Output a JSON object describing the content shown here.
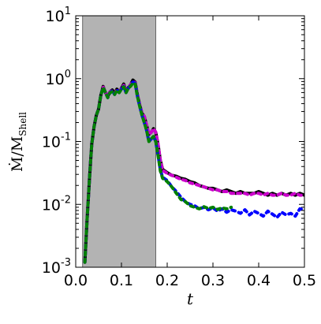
{
  "chart_data": {
    "type": "line",
    "title": "",
    "xlabel": "t",
    "ylabel": {
      "main": "Ṁ/M",
      "subscript": "Shell"
    },
    "xlim": [
      0.0,
      0.5
    ],
    "ylim": [
      0.001,
      10
    ],
    "yscale": "log",
    "grid": false,
    "legend": "none",
    "x_ticks": [
      "0.0",
      "0.1",
      "0.2",
      "0.3",
      "0.4",
      "0.5"
    ],
    "y_ticks": [
      {
        "base": "10",
        "exp": "-3"
      },
      {
        "base": "10",
        "exp": "-2"
      },
      {
        "base": "10",
        "exp": "-1"
      },
      {
        "base": "10",
        "exp": "0"
      },
      {
        "base": "10",
        "exp": "1"
      }
    ],
    "shaded_region": {
      "x": [
        0.015,
        0.175
      ],
      "color": "#b3b3b3"
    },
    "series": [
      {
        "color": "#000000",
        "style": "solid",
        "points": [
          [
            0.02,
            0.0012
          ],
          [
            0.025,
            0.006
          ],
          [
            0.03,
            0.025
          ],
          [
            0.035,
            0.09
          ],
          [
            0.04,
            0.17
          ],
          [
            0.045,
            0.26
          ],
          [
            0.05,
            0.33
          ],
          [
            0.055,
            0.55
          ],
          [
            0.06,
            0.75
          ],
          [
            0.065,
            0.6
          ],
          [
            0.07,
            0.52
          ],
          [
            0.075,
            0.62
          ],
          [
            0.08,
            0.66
          ],
          [
            0.085,
            0.58
          ],
          [
            0.09,
            0.68
          ],
          [
            0.095,
            0.62
          ],
          [
            0.1,
            0.7
          ],
          [
            0.105,
            0.82
          ],
          [
            0.11,
            0.62
          ],
          [
            0.115,
            0.72
          ],
          [
            0.12,
            0.8
          ],
          [
            0.125,
            0.95
          ],
          [
            0.13,
            0.88
          ],
          [
            0.135,
            0.55
          ],
          [
            0.14,
            0.38
          ],
          [
            0.145,
            0.28
          ],
          [
            0.15,
            0.25
          ],
          [
            0.155,
            0.18
          ],
          [
            0.16,
            0.13
          ],
          [
            0.165,
            0.14
          ],
          [
            0.17,
            0.16
          ],
          [
            0.175,
            0.14
          ],
          [
            0.18,
            0.09
          ],
          [
            0.185,
            0.05
          ],
          [
            0.19,
            0.036
          ],
          [
            0.2,
            0.032
          ],
          [
            0.21,
            0.029
          ],
          [
            0.22,
            0.028
          ],
          [
            0.23,
            0.026
          ],
          [
            0.24,
            0.025
          ],
          [
            0.25,
            0.023
          ],
          [
            0.26,
            0.022
          ],
          [
            0.27,
            0.02
          ],
          [
            0.28,
            0.019
          ],
          [
            0.29,
            0.018
          ],
          [
            0.3,
            0.018
          ],
          [
            0.31,
            0.017
          ],
          [
            0.32,
            0.016
          ],
          [
            0.33,
            0.017
          ],
          [
            0.34,
            0.016
          ],
          [
            0.35,
            0.015
          ],
          [
            0.36,
            0.016
          ],
          [
            0.37,
            0.015
          ],
          [
            0.38,
            0.015
          ],
          [
            0.39,
            0.015
          ],
          [
            0.4,
            0.016
          ],
          [
            0.41,
            0.015
          ],
          [
            0.42,
            0.014
          ],
          [
            0.43,
            0.015
          ],
          [
            0.44,
            0.014
          ],
          [
            0.45,
            0.015
          ],
          [
            0.46,
            0.014
          ],
          [
            0.47,
            0.015
          ],
          [
            0.48,
            0.014
          ],
          [
            0.49,
            0.015
          ],
          [
            0.5,
            0.014
          ]
        ]
      },
      {
        "color": "#cc00cc",
        "style": "dashed",
        "points": [
          [
            0.02,
            0.0012
          ],
          [
            0.025,
            0.006
          ],
          [
            0.03,
            0.025
          ],
          [
            0.035,
            0.09
          ],
          [
            0.04,
            0.17
          ],
          [
            0.045,
            0.26
          ],
          [
            0.05,
            0.33
          ],
          [
            0.055,
            0.55
          ],
          [
            0.06,
            0.74
          ],
          [
            0.065,
            0.6
          ],
          [
            0.07,
            0.52
          ],
          [
            0.075,
            0.62
          ],
          [
            0.08,
            0.64
          ],
          [
            0.085,
            0.58
          ],
          [
            0.09,
            0.66
          ],
          [
            0.095,
            0.62
          ],
          [
            0.1,
            0.7
          ],
          [
            0.105,
            0.78
          ],
          [
            0.11,
            0.62
          ],
          [
            0.115,
            0.72
          ],
          [
            0.12,
            0.8
          ],
          [
            0.125,
            0.9
          ],
          [
            0.13,
            0.86
          ],
          [
            0.135,
            0.55
          ],
          [
            0.14,
            0.38
          ],
          [
            0.145,
            0.28
          ],
          [
            0.15,
            0.25
          ],
          [
            0.155,
            0.18
          ],
          [
            0.16,
            0.13
          ],
          [
            0.165,
            0.14
          ],
          [
            0.17,
            0.16
          ],
          [
            0.175,
            0.14
          ],
          [
            0.18,
            0.09
          ],
          [
            0.185,
            0.05
          ],
          [
            0.19,
            0.035
          ],
          [
            0.2,
            0.031
          ],
          [
            0.21,
            0.029
          ],
          [
            0.22,
            0.027
          ],
          [
            0.23,
            0.025
          ],
          [
            0.24,
            0.024
          ],
          [
            0.25,
            0.022
          ],
          [
            0.26,
            0.021
          ],
          [
            0.27,
            0.02
          ],
          [
            0.28,
            0.019
          ],
          [
            0.29,
            0.018
          ],
          [
            0.3,
            0.017
          ],
          [
            0.31,
            0.017
          ],
          [
            0.32,
            0.016
          ],
          [
            0.33,
            0.016
          ],
          [
            0.34,
            0.015
          ],
          [
            0.35,
            0.015
          ],
          [
            0.36,
            0.015
          ],
          [
            0.37,
            0.015
          ],
          [
            0.38,
            0.014
          ],
          [
            0.39,
            0.015
          ],
          [
            0.4,
            0.015
          ],
          [
            0.41,
            0.014
          ],
          [
            0.42,
            0.015
          ],
          [
            0.43,
            0.014
          ],
          [
            0.44,
            0.014
          ],
          [
            0.45,
            0.015
          ],
          [
            0.46,
            0.014
          ],
          [
            0.47,
            0.014
          ],
          [
            0.48,
            0.015
          ],
          [
            0.49,
            0.014
          ],
          [
            0.5,
            0.014
          ]
        ]
      },
      {
        "color": "#0000ff",
        "style": "dashed",
        "points": [
          [
            0.02,
            0.0012
          ],
          [
            0.025,
            0.006
          ],
          [
            0.03,
            0.025
          ],
          [
            0.035,
            0.09
          ],
          [
            0.04,
            0.17
          ],
          [
            0.045,
            0.26
          ],
          [
            0.05,
            0.33
          ],
          [
            0.055,
            0.55
          ],
          [
            0.06,
            0.72
          ],
          [
            0.065,
            0.6
          ],
          [
            0.07,
            0.5
          ],
          [
            0.075,
            0.6
          ],
          [
            0.08,
            0.64
          ],
          [
            0.085,
            0.56
          ],
          [
            0.09,
            0.66
          ],
          [
            0.095,
            0.6
          ],
          [
            0.1,
            0.68
          ],
          [
            0.105,
            0.75
          ],
          [
            0.11,
            0.6
          ],
          [
            0.115,
            0.7
          ],
          [
            0.12,
            0.78
          ],
          [
            0.125,
            0.88
          ],
          [
            0.13,
            0.84
          ],
          [
            0.135,
            0.52
          ],
          [
            0.14,
            0.36
          ],
          [
            0.145,
            0.26
          ],
          [
            0.15,
            0.2
          ],
          [
            0.155,
            0.15
          ],
          [
            0.16,
            0.1
          ],
          [
            0.165,
            0.11
          ],
          [
            0.17,
            0.12
          ],
          [
            0.175,
            0.1
          ],
          [
            0.18,
            0.06
          ],
          [
            0.185,
            0.035
          ],
          [
            0.19,
            0.027
          ],
          [
            0.2,
            0.024
          ],
          [
            0.21,
            0.019
          ],
          [
            0.22,
            0.016
          ],
          [
            0.23,
            0.013
          ],
          [
            0.24,
            0.011
          ],
          [
            0.25,
            0.01
          ],
          [
            0.26,
            0.0095
          ],
          [
            0.27,
            0.0085
          ],
          [
            0.28,
            0.009
          ],
          [
            0.29,
            0.0082
          ],
          [
            0.3,
            0.0088
          ],
          [
            0.31,
            0.0078
          ],
          [
            0.32,
            0.0085
          ],
          [
            0.33,
            0.0075
          ],
          [
            0.34,
            0.0082
          ],
          [
            0.35,
            0.0078
          ],
          [
            0.36,
            0.0072
          ],
          [
            0.37,
            0.0082
          ],
          [
            0.38,
            0.0068
          ],
          [
            0.39,
            0.0078
          ],
          [
            0.4,
            0.0072
          ],
          [
            0.41,
            0.0065
          ],
          [
            0.42,
            0.0078
          ],
          [
            0.43,
            0.007
          ],
          [
            0.44,
            0.0062
          ],
          [
            0.45,
            0.0075
          ],
          [
            0.46,
            0.0068
          ],
          [
            0.47,
            0.0072
          ],
          [
            0.48,
            0.0065
          ],
          [
            0.49,
            0.0085
          ],
          [
            0.5,
            0.0082
          ]
        ]
      },
      {
        "color": "#008000",
        "style": "dashed",
        "points": [
          [
            0.02,
            0.0012
          ],
          [
            0.025,
            0.006
          ],
          [
            0.03,
            0.025
          ],
          [
            0.035,
            0.09
          ],
          [
            0.04,
            0.17
          ],
          [
            0.045,
            0.26
          ],
          [
            0.05,
            0.33
          ],
          [
            0.055,
            0.55
          ],
          [
            0.06,
            0.72
          ],
          [
            0.065,
            0.6
          ],
          [
            0.07,
            0.5
          ],
          [
            0.075,
            0.6
          ],
          [
            0.08,
            0.62
          ],
          [
            0.085,
            0.56
          ],
          [
            0.09,
            0.65
          ],
          [
            0.095,
            0.6
          ],
          [
            0.1,
            0.68
          ],
          [
            0.105,
            0.74
          ],
          [
            0.11,
            0.6
          ],
          [
            0.115,
            0.7
          ],
          [
            0.12,
            0.76
          ],
          [
            0.125,
            0.85
          ],
          [
            0.13,
            0.82
          ],
          [
            0.135,
            0.52
          ],
          [
            0.14,
            0.36
          ],
          [
            0.145,
            0.26
          ],
          [
            0.15,
            0.2
          ],
          [
            0.155,
            0.15
          ],
          [
            0.16,
            0.1
          ],
          [
            0.165,
            0.11
          ],
          [
            0.17,
            0.12
          ],
          [
            0.175,
            0.1
          ],
          [
            0.18,
            0.06
          ],
          [
            0.185,
            0.034
          ],
          [
            0.19,
            0.026
          ],
          [
            0.2,
            0.023
          ],
          [
            0.21,
            0.019
          ],
          [
            0.22,
            0.015
          ],
          [
            0.23,
            0.012
          ],
          [
            0.24,
            0.011
          ],
          [
            0.25,
            0.0095
          ],
          [
            0.26,
            0.009
          ],
          [
            0.27,
            0.0085
          ],
          [
            0.28,
            0.0092
          ],
          [
            0.29,
            0.0086
          ],
          [
            0.3,
            0.009
          ],
          [
            0.31,
            0.0083
          ],
          [
            0.32,
            0.0088
          ],
          [
            0.33,
            0.0085
          ],
          [
            0.34,
            0.009
          ]
        ]
      }
    ]
  }
}
